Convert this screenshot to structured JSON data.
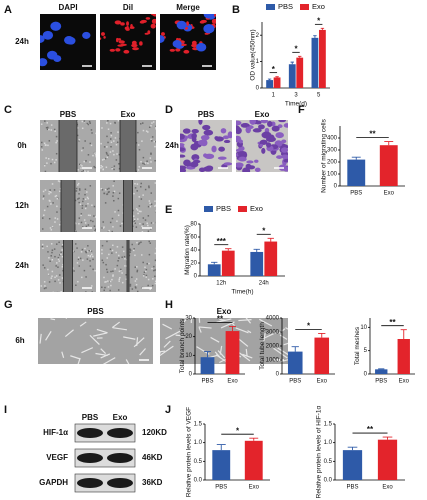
{
  "panel_letters": [
    "A",
    "B",
    "C",
    "D",
    "E",
    "F",
    "G",
    "H",
    "I",
    "J"
  ],
  "panel_a": {
    "columns": [
      "DAPI",
      "Dil",
      "Merge"
    ],
    "rows": [
      "24h"
    ]
  },
  "panel_c": {
    "columns": [
      "PBS",
      "Exo"
    ],
    "rows": [
      "0h",
      "12h",
      "24h"
    ]
  },
  "panel_d": {
    "columns": [
      "PBS",
      "Exo"
    ],
    "rows": [
      "24h"
    ]
  },
  "panel_g": {
    "columns": [
      "PBS",
      "Exo"
    ],
    "rows": [
      "6h"
    ]
  },
  "panel_i": {
    "columns": [
      "PBS",
      "Exo"
    ],
    "rows": [
      {
        "protein": "HIF-1α",
        "size": "120KD"
      },
      {
        "protein": "VEGF",
        "size": "46KD"
      },
      {
        "protein": "GAPDH",
        "size": "36KD"
      }
    ]
  },
  "chart_data": [
    {
      "type": "bar",
      "categories": [
        "1",
        "3",
        "5"
      ],
      "series": [
        {
          "name": "PBS",
          "color": "#2e5aa8",
          "values": [
            0.3,
            0.9,
            1.9
          ],
          "errors": [
            0.04,
            0.08,
            0.08
          ]
        },
        {
          "name": "Exo",
          "color": "#e3242b",
          "values": [
            0.4,
            1.15,
            2.2
          ],
          "errors": [
            0.03,
            0.05,
            0.06
          ]
        }
      ],
      "xlabel": "Time(d)",
      "ylabel": "OD value(450nm)",
      "ylim": [
        0,
        2.5
      ],
      "yticks": [
        0,
        1,
        2
      ],
      "annotations": [
        "*",
        "*",
        "*"
      ]
    },
    {
      "type": "bar",
      "categories": [
        "12h",
        "24h"
      ],
      "series": [
        {
          "name": "PBS",
          "color": "#2e5aa8",
          "values": [
            18,
            37
          ],
          "errors": [
            3,
            4
          ]
        },
        {
          "name": "Exo",
          "color": "#e3242b",
          "values": [
            39,
            53
          ],
          "errors": [
            3,
            5
          ]
        }
      ],
      "xlabel": "Time(h)",
      "ylabel": "Migration  rate(%)",
      "ylim": [
        0,
        80
      ],
      "yticks": [
        0,
        20,
        40,
        60,
        80
      ],
      "annotations": [
        "***",
        "*"
      ]
    },
    {
      "type": "bar",
      "categories": [
        "PBS",
        "Exo"
      ],
      "colors": [
        "#2e5aa8",
        "#e3242b"
      ],
      "values": [
        220,
        340
      ],
      "errors": [
        20,
        30
      ],
      "ylabel": "Number of migrating cells",
      "ylim": [
        0,
        500
      ],
      "yticks": [
        0,
        100,
        200,
        300,
        400
      ],
      "annotations": [
        "**"
      ]
    },
    {
      "type": "bar",
      "categories": [
        "PBS",
        "Exo"
      ],
      "colors": [
        "#2e5aa8",
        "#e3242b"
      ],
      "values": [
        9,
        23
      ],
      "errors": [
        3,
        2.5
      ],
      "ylabel": "Total branch points",
      "ylim": [
        0,
        30
      ],
      "yticks": [
        0,
        10,
        20,
        30
      ],
      "annotations": [
        "**"
      ]
    },
    {
      "type": "bar",
      "categories": [
        "PBS",
        "Exo"
      ],
      "colors": [
        "#2e5aa8",
        "#e3242b"
      ],
      "values": [
        1600,
        2600
      ],
      "errors": [
        350,
        300
      ],
      "ylabel": "Total tube length",
      "ylim": [
        0,
        4000
      ],
      "yticks": [
        0,
        1000,
        2000,
        3000,
        4000
      ],
      "annotations": [
        "*"
      ]
    },
    {
      "type": "bar",
      "categories": [
        "PBS",
        "Exo"
      ],
      "colors": [
        "#2e5aa8",
        "#e3242b"
      ],
      "values": [
        1,
        7.5
      ],
      "errors": [
        0.1,
        2
      ],
      "ylabel": "Total meshes",
      "ylim": [
        0,
        12
      ],
      "yticks": [
        0,
        5,
        10
      ],
      "annotations": [
        "**"
      ]
    },
    {
      "type": "bar",
      "categories": [
        "PBS",
        "Exo"
      ],
      "colors": [
        "#2e5aa8",
        "#e3242b"
      ],
      "values": [
        0.8,
        1.05
      ],
      "errors": [
        0.15,
        0.07
      ],
      "ylabel": "Relative protein levels of VEGF",
      "ylim": [
        0,
        1.5
      ],
      "yticks": [
        {
          "value": 0,
          "label": "0.0"
        },
        0.5,
        {
          "value": 1,
          "label": "1.0"
        },
        1.5
      ],
      "annotations": [
        "*"
      ]
    },
    {
      "type": "bar",
      "categories": [
        "PBS",
        "Exo"
      ],
      "colors": [
        "#2e5aa8",
        "#e3242b"
      ],
      "values": [
        0.8,
        1.08
      ],
      "errors": [
        0.08,
        0.07
      ],
      "ylabel": "Relative protein levels of HIF-1α",
      "ylim": [
        0,
        1.5
      ],
      "yticks": [
        {
          "value": 0,
          "label": "0.0"
        },
        0.5,
        {
          "value": 1,
          "label": "1.0"
        },
        1.5
      ],
      "annotations": [
        "**"
      ]
    }
  ]
}
